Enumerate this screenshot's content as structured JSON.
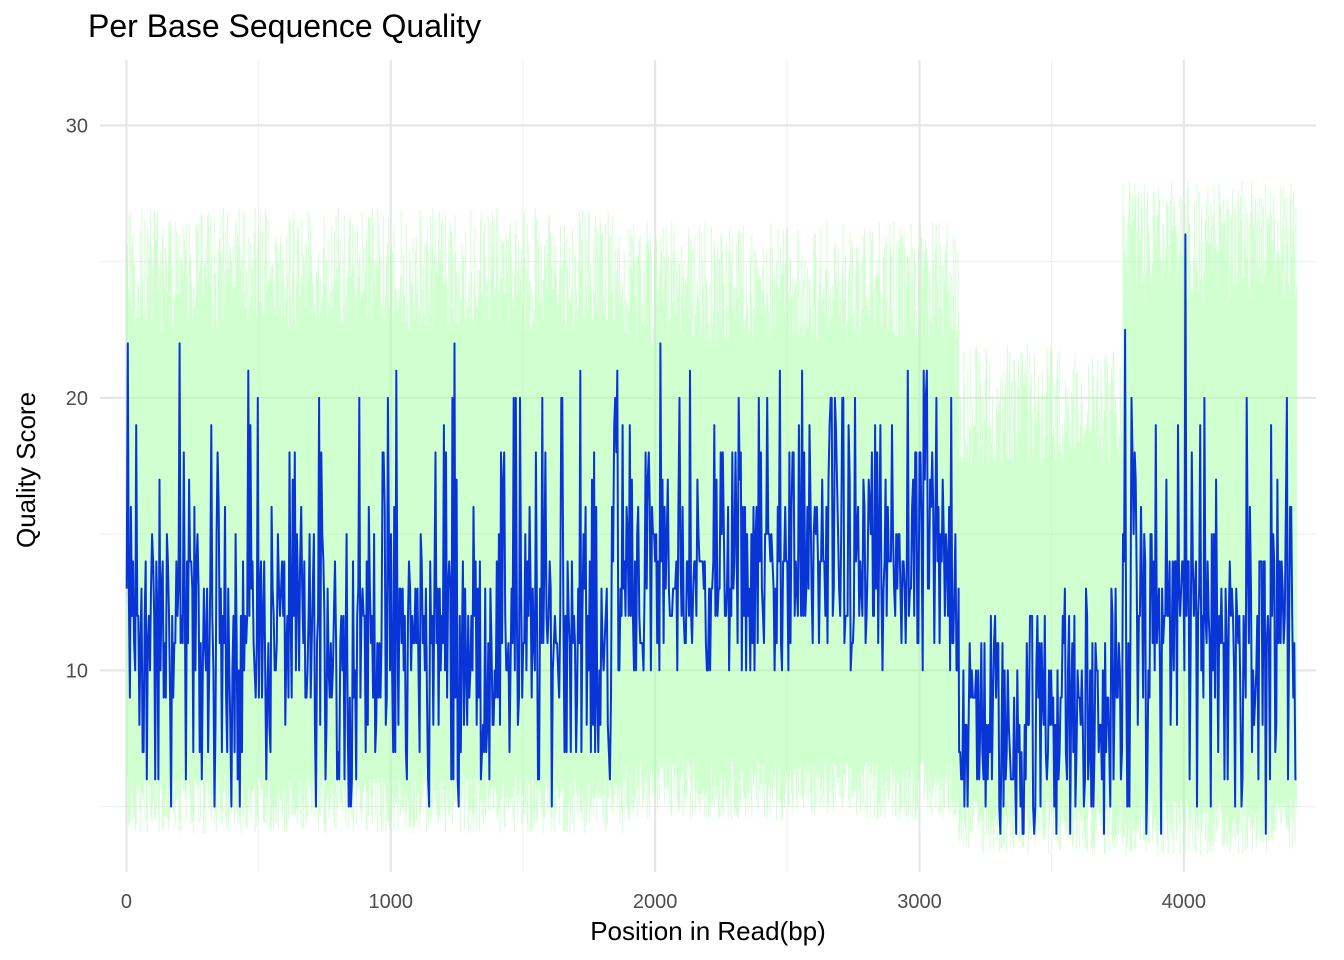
{
  "chart_data": {
    "type": "line",
    "title": "Per Base Sequence Quality",
    "xlabel": "Position in Read(bp)",
    "ylabel": "Quality Score",
    "xlim": [
      -100,
      4500
    ],
    "ylim": [
      2.6,
      32.4
    ],
    "x_ticks": [
      0,
      1000,
      2000,
      3000,
      4000
    ],
    "x_tick_labels": [
      "0",
      "1000",
      "2000",
      "3000",
      "4000"
    ],
    "x_minor_ticks": [
      500,
      1500,
      2500,
      3500
    ],
    "y_ticks": [
      10,
      20,
      30
    ],
    "y_tick_labels": [
      "10",
      "20",
      "30"
    ],
    "y_minor_ticks": [
      5,
      15,
      25
    ],
    "grid": true,
    "legend": "none",
    "x_range": [
      1,
      4430
    ],
    "segments": [
      {
        "x_start": 1,
        "x_end": 1880,
        "mean": 11.5,
        "min": 5,
        "max": 21,
        "band_lower": 4,
        "band_upper": 27
      },
      {
        "x_start": 1880,
        "x_end": 3150,
        "mean": 13.8,
        "min": 10,
        "max": 21,
        "band_lower": 4.5,
        "band_upper": 26.5
      },
      {
        "x_start": 3150,
        "x_end": 3770,
        "mean": 8.3,
        "min": 4,
        "max": 13,
        "band_lower": 3.2,
        "band_upper": 22
      },
      {
        "x_start": 3770,
        "x_end": 4430,
        "mean": 12,
        "min": 4,
        "max": 20,
        "band_lower": 3.2,
        "band_upper": 28
      }
    ],
    "notable_points": [
      {
        "x": 5,
        "y": 22
      },
      {
        "x": 200,
        "y": 22
      },
      {
        "x": 460,
        "y": 21
      },
      {
        "x": 1240,
        "y": 22
      },
      {
        "x": 2020,
        "y": 22
      },
      {
        "x": 3780,
        "y": 22.5
      },
      {
        "x": 4008,
        "y": 26
      }
    ],
    "series": [
      {
        "type": "line",
        "color": "#0a35d6"
      },
      {
        "type": "ribbon",
        "color": "#aaffaa"
      }
    ]
  }
}
